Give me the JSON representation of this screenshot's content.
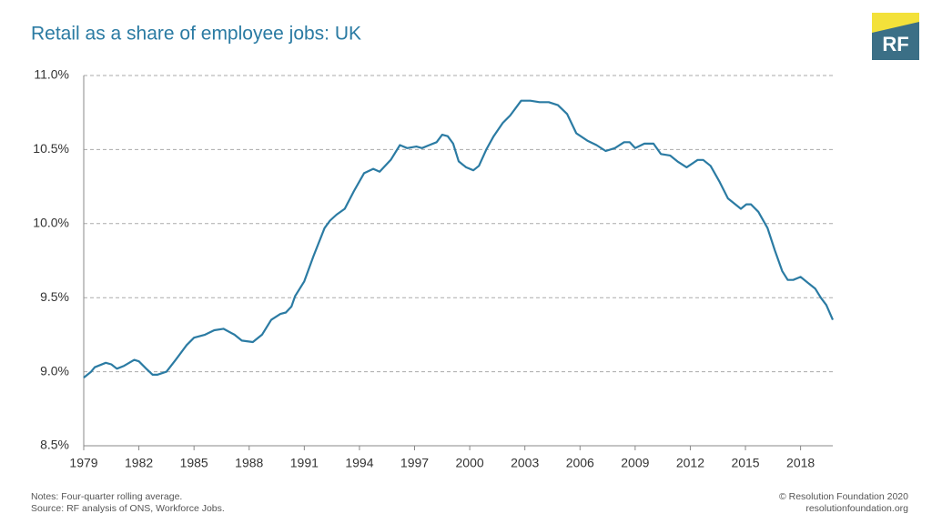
{
  "chart_data": {
    "type": "line",
    "title": "Retail as a share of employee jobs: UK",
    "logo": "RF",
    "notes": [
      "Notes: Four-quarter rolling average.",
      "Source: RF analysis of ONS, Workforce Jobs."
    ],
    "credits": [
      "© Resolution Foundation 2020",
      "resolutionfoundation.org"
    ],
    "color": "#2b7ba3",
    "x": [
      1979.0,
      1979.4,
      1979.6,
      1980.2,
      1980.5,
      1980.8,
      1981.2,
      1981.75,
      1982.0,
      1982.4,
      1982.75,
      1983.0,
      1983.5,
      1984.0,
      1984.6,
      1985.0,
      1985.6,
      1986.1,
      1986.6,
      1987.2,
      1987.6,
      1988.2,
      1988.7,
      1989.2,
      1989.7,
      1990.0,
      1990.3,
      1990.5,
      1991.0,
      1991.5,
      1992.1,
      1992.4,
      1992.75,
      1993.2,
      1993.7,
      1994.25,
      1994.75,
      1995.1,
      1995.7,
      1996.2,
      1996.6,
      1997.1,
      1997.4,
      1997.8,
      1998.2,
      1998.5,
      1998.8,
      1999.1,
      1999.4,
      1999.8,
      2000.2,
      2000.5,
      2000.9,
      2001.3,
      2001.8,
      2002.2,
      2002.8,
      2003.3,
      2003.8,
      2004.3,
      2004.8,
      2005.3,
      2005.8,
      2006.4,
      2006.9,
      2007.4,
      2007.9,
      2008.4,
      2008.7,
      2009.0,
      2009.5,
      2009.8,
      2010.0,
      2010.4,
      2010.9,
      2011.3,
      2011.8,
      2012.4,
      2012.7,
      2013.1,
      2013.6,
      2014.05,
      2014.35,
      2014.75,
      2015.05,
      2015.3,
      2015.7,
      2016.2,
      2016.6,
      2017.0,
      2017.3,
      2017.6,
      2018.0,
      2018.5,
      2018.8,
      2019.1,
      2019.4,
      2019.75
    ],
    "values": [
      8.96,
      9.0,
      9.03,
      9.06,
      9.05,
      9.02,
      9.04,
      9.08,
      9.07,
      9.02,
      8.98,
      8.98,
      9.0,
      9.08,
      9.18,
      9.23,
      9.25,
      9.28,
      9.29,
      9.25,
      9.21,
      9.2,
      9.25,
      9.35,
      9.39,
      9.4,
      9.44,
      9.51,
      9.61,
      9.78,
      9.97,
      10.02,
      10.06,
      10.1,
      10.22,
      10.34,
      10.37,
      10.35,
      10.43,
      10.53,
      10.51,
      10.52,
      10.51,
      10.53,
      10.55,
      10.6,
      10.59,
      10.54,
      10.42,
      10.38,
      10.36,
      10.39,
      10.5,
      10.59,
      10.68,
      10.73,
      10.83,
      10.83,
      10.82,
      10.82,
      10.8,
      10.74,
      10.61,
      10.56,
      10.53,
      10.49,
      10.51,
      10.55,
      10.55,
      10.51,
      10.54,
      10.54,
      10.54,
      10.47,
      10.46,
      10.42,
      10.38,
      10.43,
      10.43,
      10.39,
      10.28,
      10.17,
      10.14,
      10.1,
      10.13,
      10.13,
      10.08,
      9.97,
      9.82,
      9.68,
      9.62,
      9.62,
      9.64,
      9.59,
      9.56,
      9.5,
      9.45,
      9.35
    ],
    "xlim": [
      1979,
      2020
    ],
    "xticks": [
      1979,
      1982,
      1985,
      1988,
      1991,
      1994,
      1997,
      2000,
      2003,
      2006,
      2009,
      2012,
      2015,
      2018
    ],
    "ylim": [
      8.5,
      11.0
    ],
    "yticks": [
      {
        "value": 8.5,
        "label": "8.5%"
      },
      {
        "value": 9.0,
        "label": "9.0%"
      },
      {
        "value": 9.5,
        "label": "9.5%"
      },
      {
        "value": 10.0,
        "label": "10.0%"
      },
      {
        "value": 10.5,
        "label": "10.5%"
      },
      {
        "value": 11.0,
        "label": "11.0%"
      }
    ],
    "grid": true
  }
}
